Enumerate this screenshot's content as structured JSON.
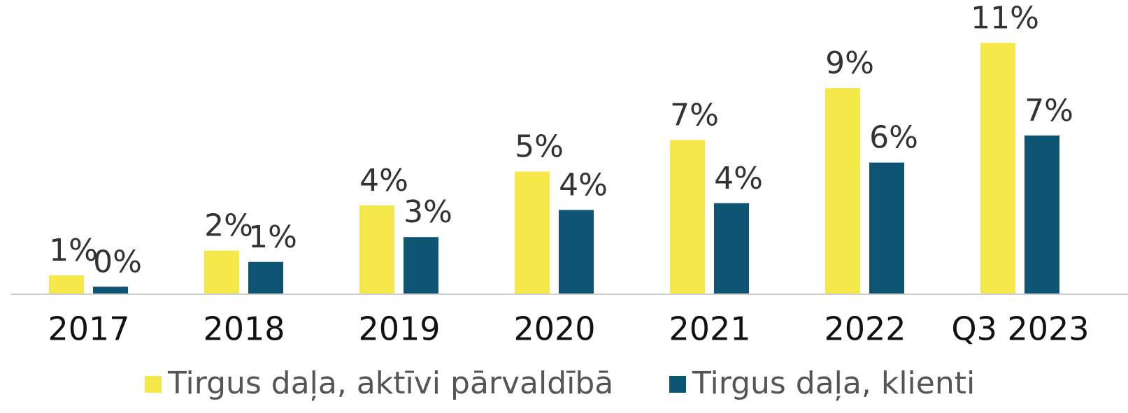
{
  "chart_data": {
    "type": "bar",
    "categories": [
      "2017",
      "2018",
      "2019",
      "2020",
      "2021",
      "2022",
      "Q3 2023"
    ],
    "series": [
      {
        "name": "Tirgus daļa, aktīvi pārvaldībā",
        "color": "#f5e84a",
        "values": [
          0.8,
          1.9,
          3.9,
          5.4,
          6.8,
          9.1,
          11.1
        ],
        "value_labels": [
          "1%",
          "2%",
          "4%",
          "5%",
          "7%",
          "9%",
          "11%"
        ]
      },
      {
        "name": "Tirgus daļa, klienti",
        "color": "#0d5573",
        "values": [
          0.3,
          1.4,
          2.5,
          3.7,
          4.0,
          5.8,
          7.0
        ],
        "value_labels": [
          "0%",
          "1%",
          "3%",
          "4%",
          "4%",
          "6%",
          "7%"
        ]
      }
    ],
    "ylim": [
      0,
      13
    ]
  }
}
